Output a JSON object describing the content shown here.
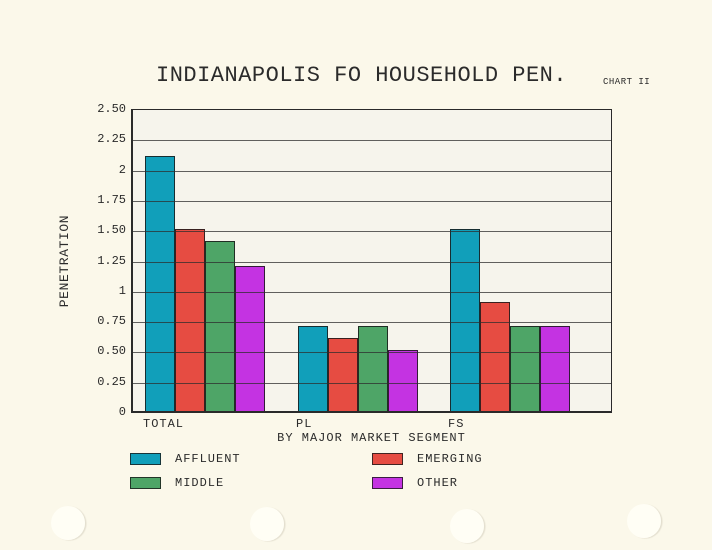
{
  "header": {
    "title": "INDIANAPOLIS FO HOUSEHOLD PEN.",
    "chart_label": "CHART II"
  },
  "chart_data": {
    "type": "bar",
    "title": "INDIANAPOLIS FO HOUSEHOLD PEN.",
    "categories": [
      "TOTAL",
      "PL",
      "FS"
    ],
    "series": [
      {
        "name": "AFFLUENT",
        "color": "#119fba",
        "values": [
          2.1,
          0.7,
          1.5
        ]
      },
      {
        "name": "EMERGING",
        "color": "#e64c42",
        "values": [
          1.5,
          0.6,
          0.9
        ]
      },
      {
        "name": "MIDDLE",
        "color": "#4ea567",
        "values": [
          1.4,
          0.7,
          0.7
        ]
      },
      {
        "name": "OTHER",
        "color": "#c433e2",
        "values": [
          1.2,
          0.5,
          0.7
        ]
      }
    ],
    "xlabel": "BY MAJOR MARKET SEGMENT",
    "ylabel": "PENETRATION",
    "ylim": [
      0,
      2.5
    ],
    "ytick_step": 0.25,
    "ytick_labels": [
      "2.50",
      "2.25",
      "2",
      "1.75",
      "1.50",
      "1.25",
      "1",
      "0.75",
      "0.50",
      "0.25",
      "0"
    ],
    "grid": "horizontal",
    "legend_position": "bottom"
  }
}
